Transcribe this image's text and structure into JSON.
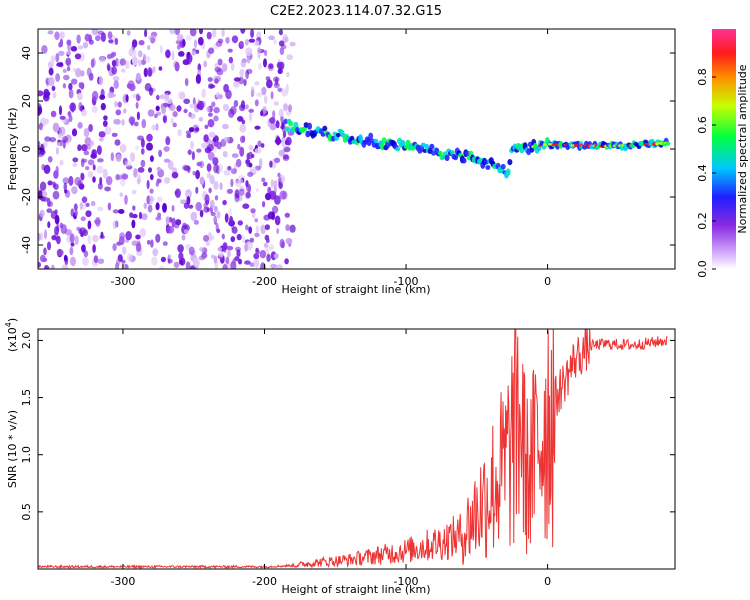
{
  "title": "C2E2.2023.114.07.32.G15",
  "chart_data": [
    {
      "type": "heatmap",
      "xlabel": "Height of straight line (km)",
      "ylabel": "Frequency (Hz)",
      "xlim": [
        -360,
        90
      ],
      "ylim": [
        -50,
        50
      ],
      "x_ticks": [
        -300,
        -200,
        -100,
        0
      ],
      "y_ticks": [
        -40,
        -20,
        0,
        20,
        40
      ],
      "colorbar": {
        "label": "Normalized spectral amplitude",
        "range": [
          0,
          1
        ],
        "ticks": [
          "0.0",
          "0.2",
          "0.4",
          "0.6",
          "0.8"
        ],
        "colormap": "rainbow"
      },
      "noise_region_x": [
        -360,
        -180
      ],
      "signal_ridge": {
        "x": [
          -185,
          -170,
          -150,
          -130,
          -110,
          -90,
          -70,
          -50,
          -35,
          -28,
          -25,
          -10,
          0,
          20,
          40,
          60,
          85
        ],
        "frequency": [
          10,
          8,
          6,
          4,
          2,
          0,
          -2,
          -4,
          -8,
          -10,
          0,
          1,
          2,
          1.5,
          1.2,
          1.5,
          2.5
        ]
      }
    },
    {
      "type": "line",
      "xlabel": "Height of straight line (km)",
      "ylabel": "SNR (10 * v/v)",
      "y_multiplier": "(x10",
      "y_multiplier_exp": "4",
      "y_multiplier_close": ")",
      "xlim": [
        -360,
        90
      ],
      "ylim": [
        0,
        2.1
      ],
      "x_ticks": [
        -300,
        -200,
        -100,
        0
      ],
      "y_ticks": [
        "0.5",
        "1.0",
        "1.5",
        "2.0"
      ],
      "line_color": "#ee3333",
      "series": [
        {
          "x": [
            -360,
            -300,
            -250,
            -200,
            -180,
            -160,
            -140,
            -120,
            -100,
            -80,
            -60,
            -50,
            -40,
            -30,
            -25,
            -20,
            -15,
            -10,
            -5,
            0,
            10,
            20,
            30,
            40,
            60,
            85
          ],
          "values": [
            0.02,
            0.02,
            0.02,
            0.02,
            0.03,
            0.06,
            0.08,
            0.12,
            0.16,
            0.22,
            0.3,
            0.5,
            0.7,
            0.9,
            1.1,
            1.4,
            0.8,
            0.95,
            1.2,
            1.35,
            1.6,
            1.85,
            1.95,
            1.97,
            1.96,
            2.0
          ]
        }
      ]
    }
  ]
}
